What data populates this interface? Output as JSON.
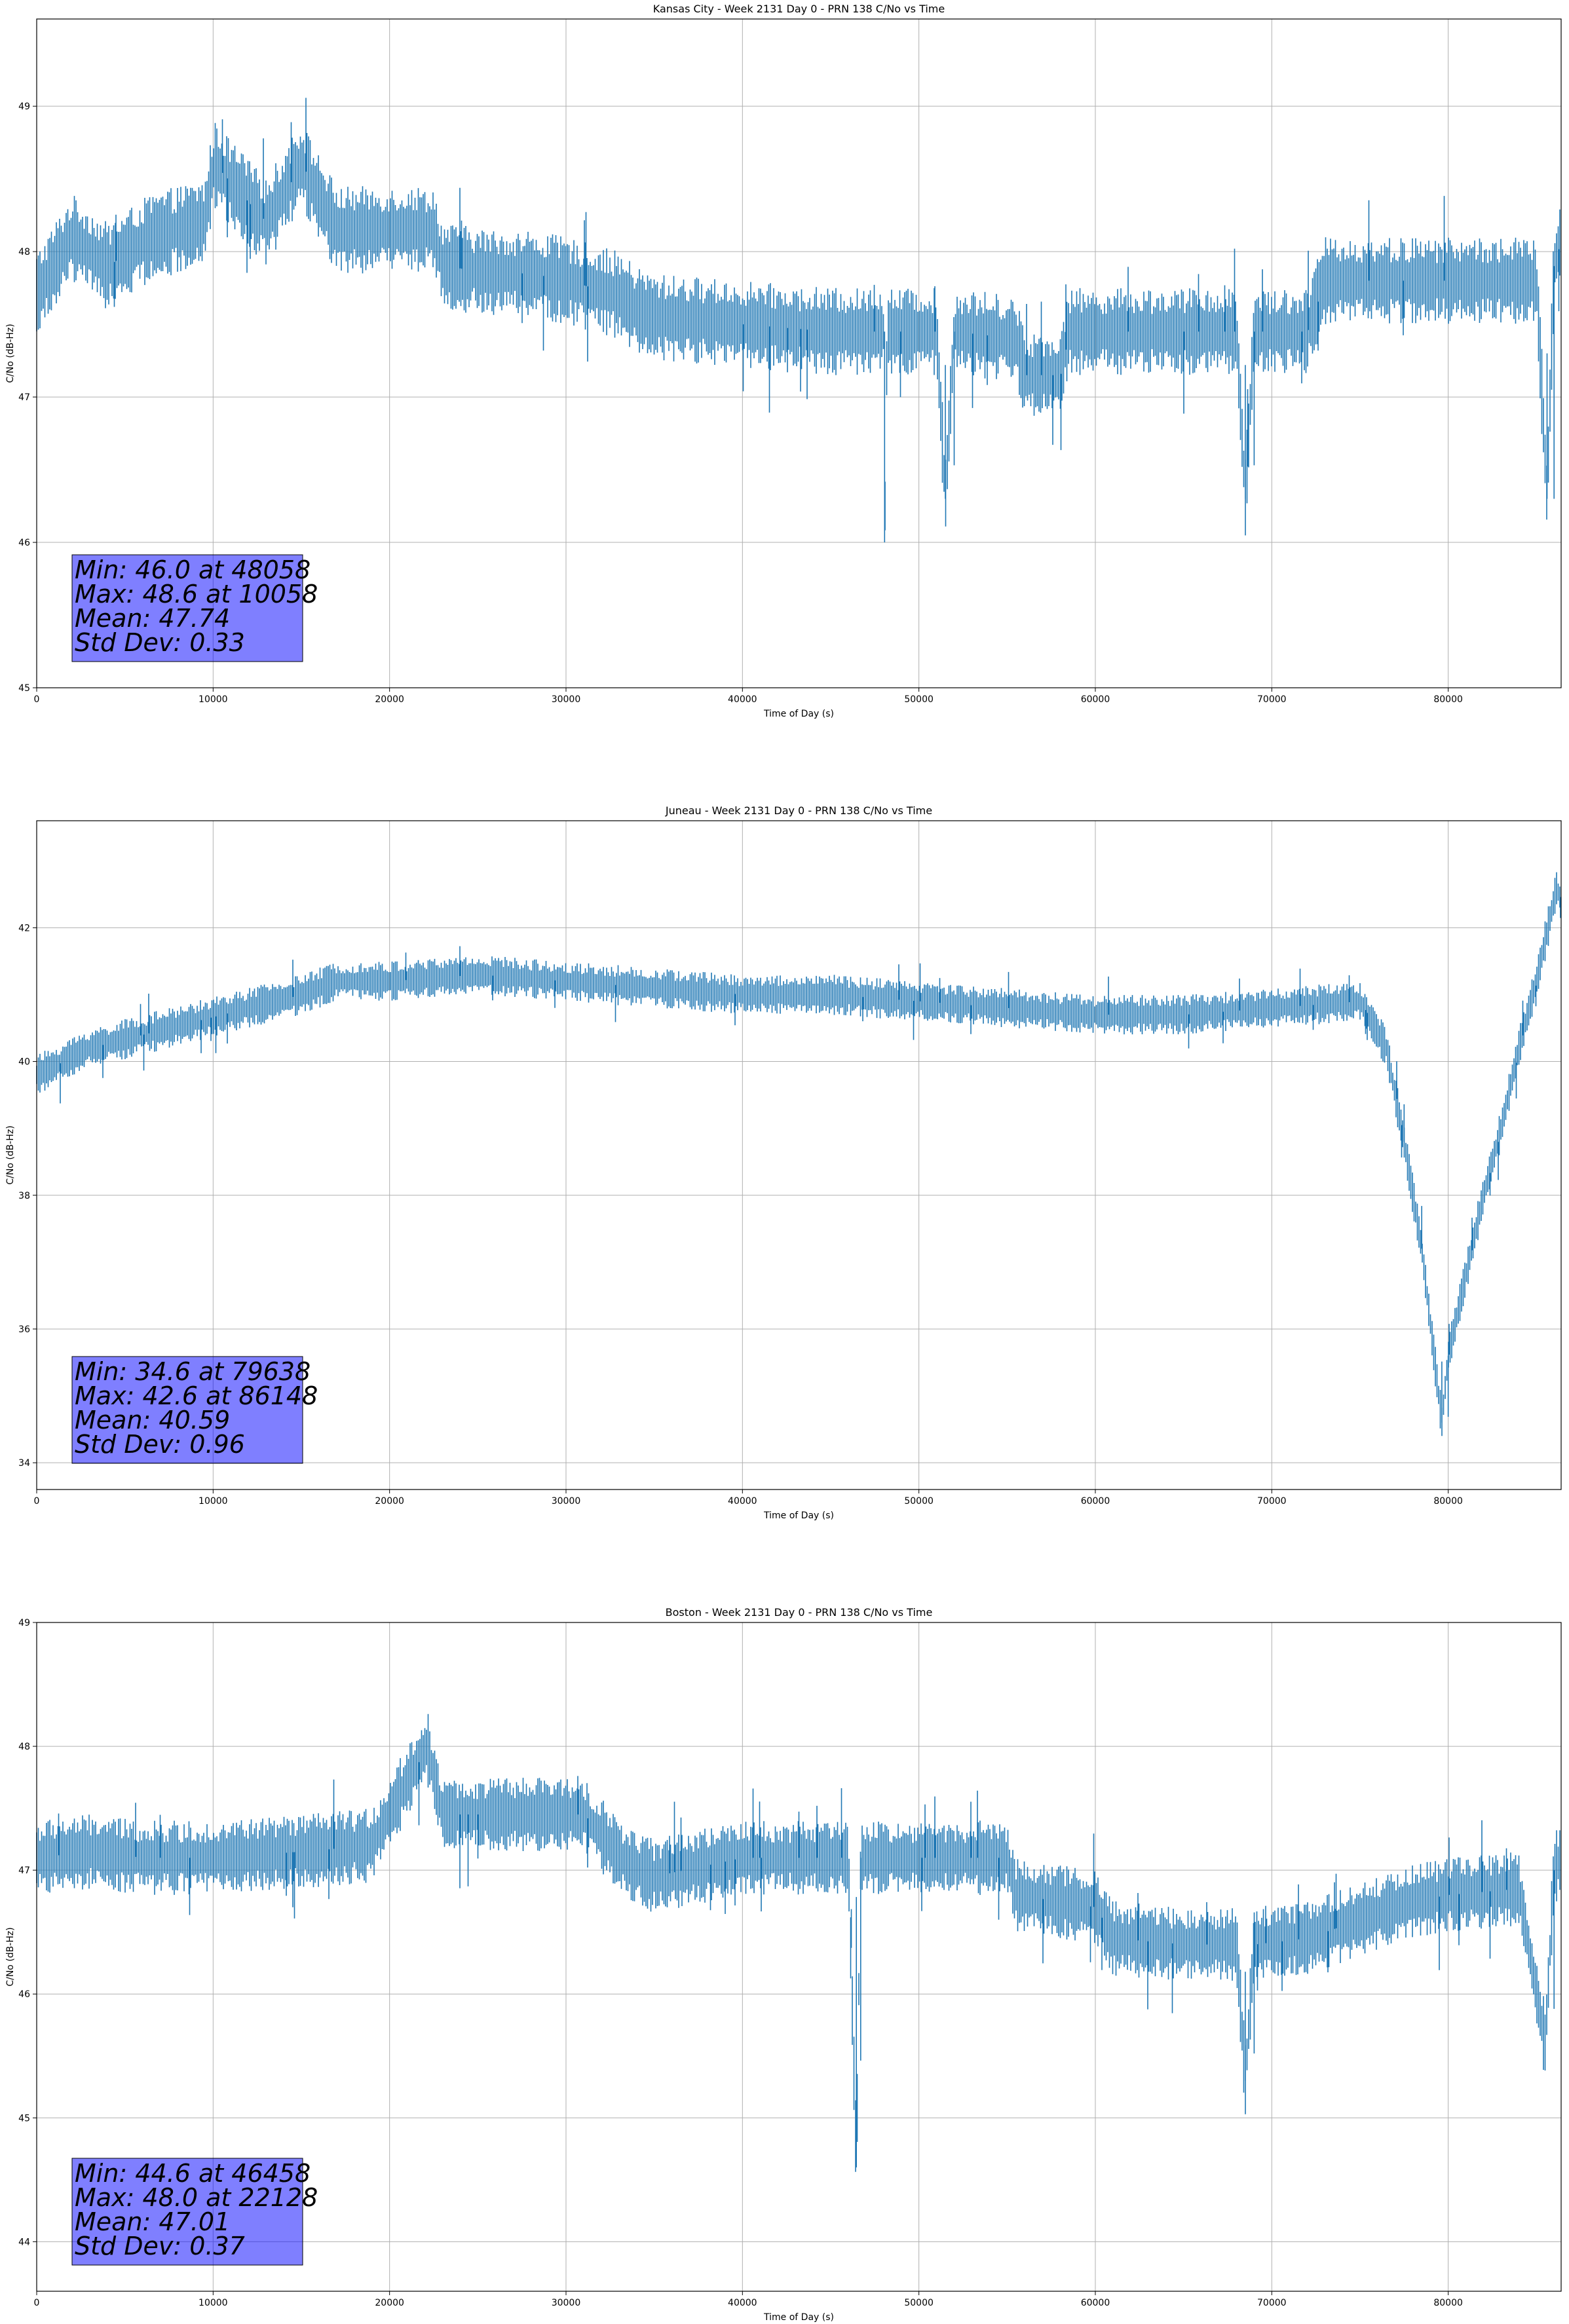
{
  "chart_data": [
    {
      "type": "line",
      "title": "Kansas City - Week 2131 Day 0 - PRN 138 C/No vs Time",
      "xlabel": "Time of Day (s)",
      "ylabel": "C/No (dB-Hz)",
      "xlim": [
        0,
        86400
      ],
      "ylim": [
        45,
        49.6
      ],
      "xticks": [
        0,
        10000,
        20000,
        30000,
        40000,
        50000,
        60000,
        70000,
        80000
      ],
      "yticks": [
        45,
        46,
        47,
        48,
        49
      ],
      "grid": true,
      "series_color": "#1f77b4",
      "series": [
        {
          "x": [
            0,
            2000,
            4000,
            6500,
            9500,
            10058,
            13000,
            15000,
            17000,
            22500,
            23000,
            26000,
            28000,
            30000,
            33000,
            34000,
            35000,
            40000,
            45000,
            48000,
            48058,
            48200,
            51000,
            51500,
            52000,
            55500,
            56000,
            58000,
            58500,
            60000,
            65000,
            68000,
            68500,
            69000,
            72000,
            73000,
            77000,
            80000,
            85000,
            85600,
            86000,
            86400
          ],
          "y": [
            47.7,
            48.1,
            47.9,
            48.1,
            48.2,
            48.6,
            48.2,
            48.6,
            48.15,
            48.15,
            47.9,
            47.85,
            47.85,
            47.8,
            47.7,
            47.6,
            47.55,
            47.5,
            47.45,
            47.45,
            46.0,
            47.45,
            47.45,
            46.3,
            47.45,
            47.4,
            47.15,
            47.15,
            47.45,
            47.45,
            47.45,
            47.45,
            46.3,
            47.45,
            47.45,
            47.8,
            47.8,
            47.8,
            47.8,
            46.3,
            47.9,
            48.1
          ]
        }
      ],
      "stats": {
        "min": "Min: 46.0 at 48058",
        "max": "Max: 48.6 at 10058",
        "mean": "Mean: 47.74",
        "std": "Std Dev: 0.33"
      }
    },
    {
      "type": "line",
      "title": "Juneau - Week 2131 Day 0 - PRN 138 C/No vs Time",
      "xlabel": "Time of Day (s)",
      "ylabel": "C/No (dB-Hz)",
      "xlim": [
        0,
        86400
      ],
      "ylim": [
        33.6,
        43.6
      ],
      "xticks": [
        0,
        10000,
        20000,
        30000,
        40000,
        50000,
        60000,
        70000,
        80000
      ],
      "yticks": [
        34,
        36,
        38,
        40,
        42
      ],
      "grid": true,
      "series_color": "#1f77b4",
      "series": [
        {
          "x": [
            0,
            1500,
            3000,
            6000,
            9000,
            12000,
            15000,
            17000,
            20000,
            25000,
            30000,
            35000,
            40000,
            45000,
            50000,
            55000,
            60000,
            65000,
            70000,
            75000,
            76500,
            77500,
            78500,
            79638,
            80000,
            81000,
            82000,
            83000,
            84000,
            85000,
            86148,
            86400
          ],
          "y": [
            39.8,
            40.0,
            40.2,
            40.4,
            40.6,
            40.8,
            41.0,
            41.2,
            41.2,
            41.3,
            41.2,
            41.1,
            41.0,
            41.0,
            40.9,
            40.8,
            40.7,
            40.7,
            40.8,
            40.9,
            40.2,
            38.8,
            37.2,
            34.6,
            35.6,
            36.8,
            38.0,
            39.0,
            40.2,
            41.2,
            42.6,
            42.4
          ]
        }
      ],
      "stats": {
        "min": "Min: 34.6 at 79638",
        "max": "Max: 42.6 at 86148",
        "mean": "Mean: 40.59",
        "std": "Std Dev: 0.96"
      }
    },
    {
      "type": "line",
      "title": "Boston - Week 2131 Day 0 - PRN 138 C/No vs Time",
      "xlabel": "Time of Day (s)",
      "ylabel": "C/No (dB-Hz)",
      "xlim": [
        0,
        86400
      ],
      "ylim": [
        43.6,
        49
      ],
      "xticks": [
        0,
        10000,
        20000,
        30000,
        40000,
        50000,
        60000,
        70000,
        80000
      ],
      "yticks": [
        44,
        45,
        46,
        47,
        48,
        49
      ],
      "grid": true,
      "series_color": "#1f77b4",
      "series": [
        {
          "x": [
            0,
            3000,
            6000,
            10000,
            15000,
            19000,
            22128,
            23000,
            27000,
            31000,
            32500,
            33500,
            35000,
            40000,
            45000,
            46000,
            46458,
            46700,
            50000,
            55000,
            55500,
            60000,
            61000,
            65000,
            68000,
            68500,
            69000,
            72000,
            75000,
            78000,
            80000,
            84000,
            85500,
            86000,
            86400
          ],
          "y": [
            47.1,
            47.15,
            47.1,
            47.1,
            47.15,
            47.2,
            48.0,
            47.45,
            47.45,
            47.45,
            47.2,
            47.05,
            46.95,
            47.1,
            47.1,
            47.1,
            44.6,
            47.1,
            47.1,
            47.1,
            46.8,
            46.7,
            46.45,
            46.4,
            46.4,
            45.3,
            46.4,
            46.45,
            46.6,
            46.75,
            46.8,
            46.85,
            45.6,
            47.0,
            47.1
          ]
        }
      ],
      "stats": {
        "min": "Min: 44.6 at 46458",
        "max": "Max: 48.0 at 22128",
        "mean": "Mean: 47.01",
        "std": "Std Dev: 0.37"
      }
    }
  ]
}
